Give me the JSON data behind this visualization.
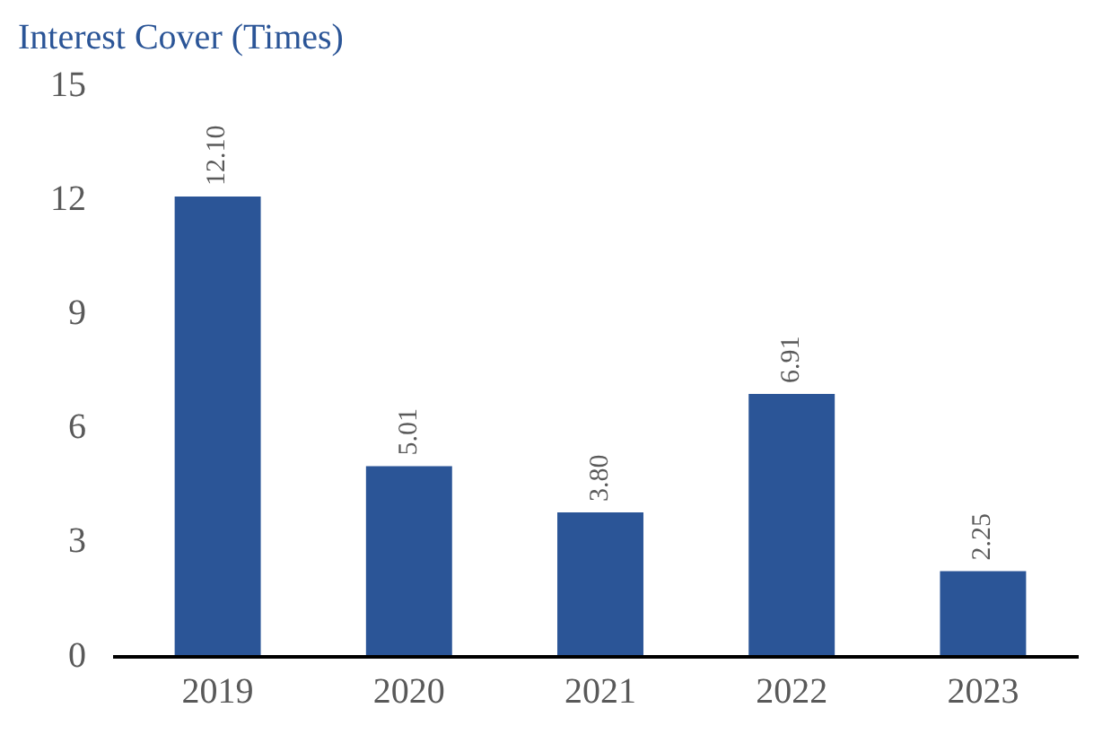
{
  "chart_data": {
    "type": "bar",
    "title": "Interest Cover (Times)",
    "categories": [
      "2019",
      "2020",
      "2021",
      "2022",
      "2023"
    ],
    "values": [
      12.1,
      5.01,
      3.8,
      6.91,
      2.25
    ],
    "value_labels": [
      "12.10",
      "5.01",
      "3.80",
      "6.91",
      "2.25"
    ],
    "color": "#2b5597",
    "ylim": [
      0,
      15
    ],
    "yticks": [
      0,
      3,
      6,
      9,
      12,
      15
    ],
    "grid": false,
    "legend": false
  }
}
